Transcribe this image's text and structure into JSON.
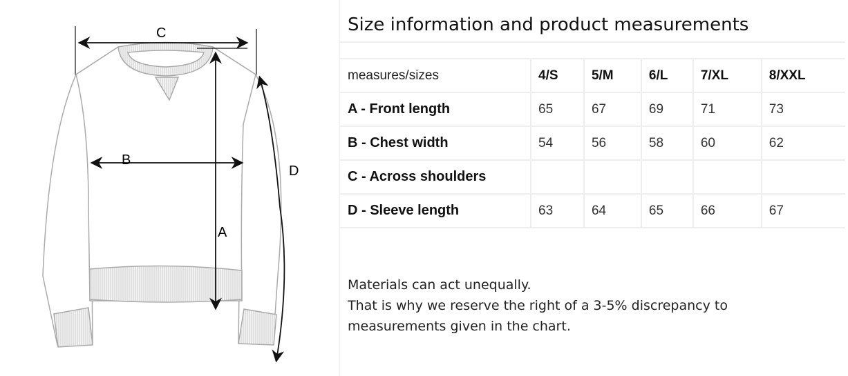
{
  "diagram": {
    "labels": {
      "a": "A",
      "b": "B",
      "c": "C",
      "d": "D"
    }
  },
  "title": "Size information and product measurements",
  "table": {
    "header_label": "measures/sizes",
    "sizes": [
      "4/S",
      "5/M",
      "6/L",
      "7/XL",
      "8/XXL"
    ],
    "rows": [
      {
        "label": "A - Front length",
        "values": [
          "65",
          "67",
          "69",
          "71",
          "73"
        ]
      },
      {
        "label": "B - Chest width",
        "values": [
          "54",
          "56",
          "58",
          "60",
          "62"
        ]
      },
      {
        "label": "C - Across shoulders",
        "values": [
          "",
          "",
          "",
          "",
          ""
        ]
      },
      {
        "label": "D - Sleeve length",
        "values": [
          "63",
          "64",
          "65",
          "66",
          "67"
        ]
      }
    ]
  },
  "notes": [
    "Materials can act unequally.",
    "That is why we reserve the right of a 3-5% discrepancy to",
    "measurements given in the chart."
  ]
}
